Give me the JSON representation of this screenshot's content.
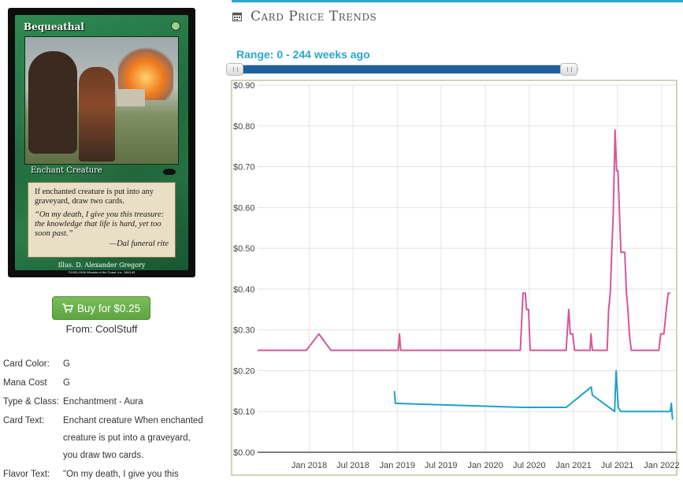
{
  "card": {
    "name": "Bequeathal",
    "type_line": "Enchant Creature",
    "rules_text": "If enchanted creature is put into any graveyard, draw two cards.",
    "flavor_text": "“On my death, I give you this treasure: the knowledge that life is hard, yet too soon past.”",
    "flavor_attribution": "—Dal funeral rite",
    "illustrator": "Illus. D. Alexander Gregory",
    "copyright": "©1993-1996 Wizards of the Coast, Inc. 106/143"
  },
  "buy": {
    "label": "Buy for $0.25",
    "from": "From: CoolStuff"
  },
  "details": [
    {
      "key": "Card Color:",
      "value": "G"
    },
    {
      "key": "Mana Cost",
      "value": "G"
    },
    {
      "key": "Type & Class:",
      "value": "Enchantment - Aura"
    },
    {
      "key": "Card Text:",
      "value": "Enchant creature When enchanted creature is put into a graveyard, you draw two cards."
    },
    {
      "key": "Flavor Text:",
      "value": "\"On my death, I give you this"
    }
  ],
  "trends": {
    "title": "Card Price Trends",
    "range_label": "Range: 0 - 244 weeks ago"
  },
  "colors": {
    "accent": "#29a8c8",
    "series_pink": "#d4579a",
    "series_blue": "#1fa2c4",
    "buy_green": "#65ab47"
  },
  "chart_data": {
    "type": "line",
    "title": "",
    "xlabel": "",
    "ylabel": "",
    "ylim": [
      0,
      0.9
    ],
    "y_ticks": [
      "$0.00",
      "$0.10",
      "$0.20",
      "$0.30",
      "$0.40",
      "$0.50",
      "$0.60",
      "$0.70",
      "$0.80",
      "$0.90"
    ],
    "x_ticks": [
      "Jan 2018",
      "Jul 2018",
      "Jan 2019",
      "Jul 2019",
      "Jan 2020",
      "Jul 2020",
      "Jan 2021",
      "Jul 2021",
      "Jan 2022"
    ],
    "x_range": [
      "2017-06-01",
      "2022-03-01"
    ],
    "grid": true,
    "series": [
      {
        "color": "#d4579a",
        "points": [
          [
            "2017-06-01",
            0.25
          ],
          [
            "2017-12-20",
            0.25
          ],
          [
            "2018-02-10",
            0.29
          ],
          [
            "2018-04-01",
            0.25
          ],
          [
            "2019-01-05",
            0.25
          ],
          [
            "2019-01-10",
            0.29
          ],
          [
            "2019-01-15",
            0.25
          ],
          [
            "2020-05-25",
            0.25
          ],
          [
            "2020-06-05",
            0.39
          ],
          [
            "2020-06-15",
            0.39
          ],
          [
            "2020-06-20",
            0.35
          ],
          [
            "2020-06-28",
            0.35
          ],
          [
            "2020-07-05",
            0.25
          ],
          [
            "2020-12-01",
            0.25
          ],
          [
            "2020-12-05",
            0.29
          ],
          [
            "2020-12-12",
            0.35
          ],
          [
            "2020-12-18",
            0.29
          ],
          [
            "2020-12-28",
            0.29
          ],
          [
            "2021-01-05",
            0.25
          ],
          [
            "2021-03-10",
            0.25
          ],
          [
            "2021-03-14",
            0.29
          ],
          [
            "2021-03-20",
            0.25
          ],
          [
            "2021-05-20",
            0.25
          ],
          [
            "2021-05-26",
            0.35
          ],
          [
            "2021-06-02",
            0.39
          ],
          [
            "2021-06-08",
            0.49
          ],
          [
            "2021-06-14",
            0.58
          ],
          [
            "2021-06-22",
            0.79
          ],
          [
            "2021-06-28",
            0.69
          ],
          [
            "2021-07-04",
            0.69
          ],
          [
            "2021-07-10",
            0.59
          ],
          [
            "2021-07-16",
            0.49
          ],
          [
            "2021-07-24",
            0.49
          ],
          [
            "2021-08-01",
            0.49
          ],
          [
            "2021-08-08",
            0.39
          ],
          [
            "2021-08-14",
            0.35
          ],
          [
            "2021-08-20",
            0.29
          ],
          [
            "2021-08-28",
            0.25
          ],
          [
            "2021-12-20",
            0.25
          ],
          [
            "2021-12-28",
            0.29
          ],
          [
            "2022-01-10",
            0.29
          ],
          [
            "2022-01-20",
            0.35
          ],
          [
            "2022-01-28",
            0.39
          ],
          [
            "2022-02-05",
            0.39
          ]
        ]
      },
      {
        "color": "#1fa2c4",
        "points": [
          [
            "2018-12-20",
            0.15
          ],
          [
            "2018-12-24",
            0.12
          ],
          [
            "2020-06-01",
            0.11
          ],
          [
            "2020-12-01",
            0.11
          ],
          [
            "2021-03-15",
            0.16
          ],
          [
            "2021-03-20",
            0.14
          ],
          [
            "2021-06-20",
            0.1
          ],
          [
            "2021-06-26",
            0.2
          ],
          [
            "2021-07-05",
            0.11
          ],
          [
            "2021-07-15",
            0.1
          ],
          [
            "2022-02-05",
            0.1
          ],
          [
            "2022-02-10",
            0.12
          ],
          [
            "2022-02-15",
            0.08
          ]
        ]
      }
    ]
  }
}
